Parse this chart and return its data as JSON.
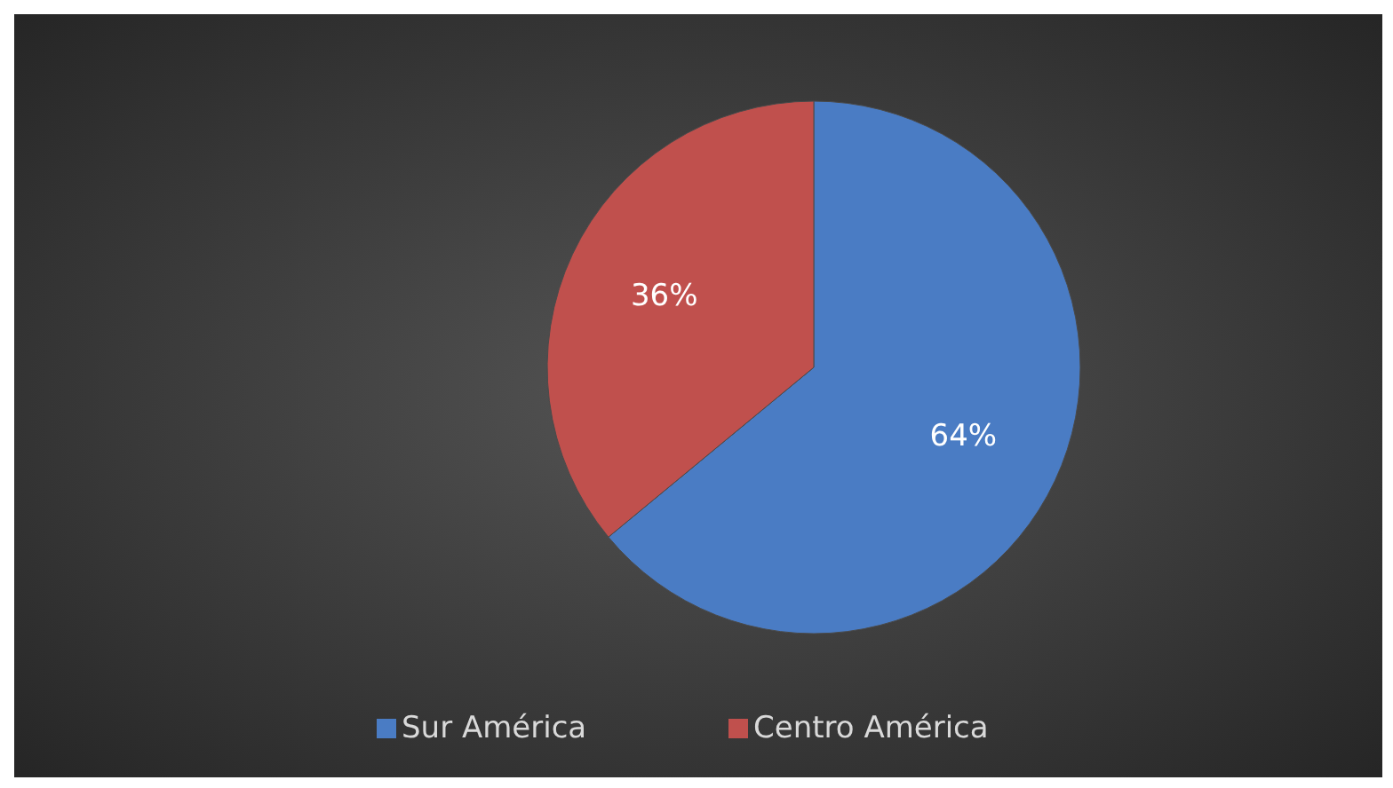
{
  "chart_data": {
    "type": "pie",
    "categories": [
      "Sur América",
      "Centro América"
    ],
    "values": [
      64,
      36
    ],
    "colors": [
      "#4a7cc4",
      "#c0504d"
    ],
    "value_labels": [
      "64%",
      "36%"
    ],
    "legend": "bottom"
  }
}
